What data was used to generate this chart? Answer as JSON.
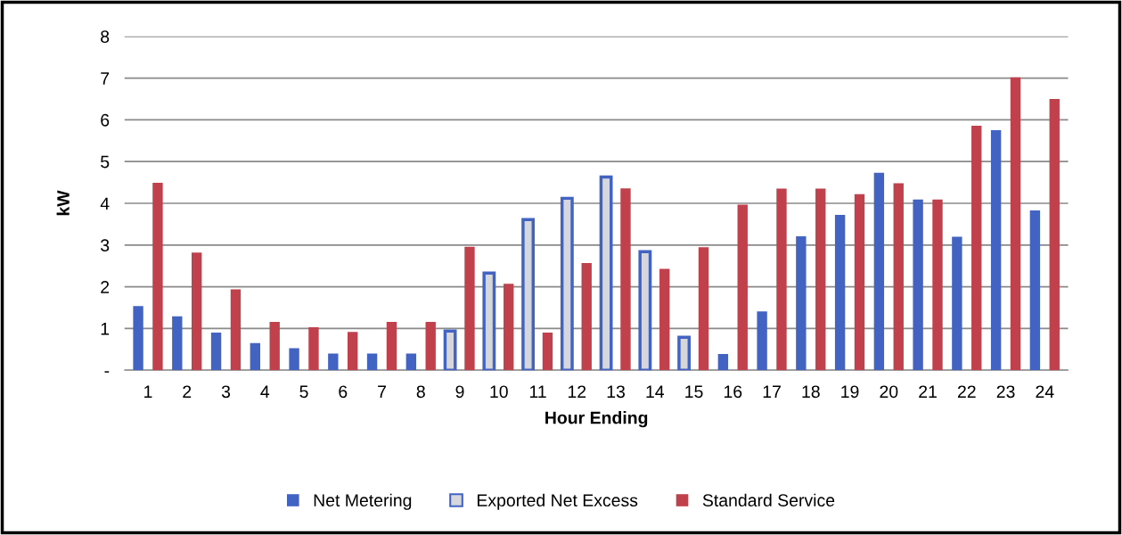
{
  "chart_data": {
    "type": "bar",
    "xlabel": "Hour Ending",
    "ylabel": "kW",
    "categories": [
      "1",
      "2",
      "3",
      "4",
      "5",
      "6",
      "7",
      "8",
      "9",
      "10",
      "11",
      "12",
      "13",
      "14",
      "15",
      "16",
      "17",
      "18",
      "19",
      "20",
      "21",
      "22",
      "23",
      "24"
    ],
    "series": [
      {
        "name": "Net Metering",
        "color": "#4263c2",
        "values": [
          1.54,
          1.29,
          0.9,
          0.65,
          0.53,
          0.4,
          0.4,
          0.4,
          null,
          null,
          null,
          null,
          null,
          null,
          null,
          0.39,
          1.41,
          3.21,
          3.72,
          4.73,
          4.09,
          3.2,
          5.75,
          3.83
        ]
      },
      {
        "name": "Exported Net Excess",
        "color": "#4263c2",
        "values": [
          null,
          null,
          null,
          null,
          null,
          null,
          null,
          null,
          0.94,
          2.33,
          3.61,
          4.12,
          4.63,
          2.84,
          0.79,
          null,
          null,
          null,
          null,
          null,
          null,
          null,
          null,
          null
        ]
      },
      {
        "name": "Standard Service",
        "color": "#c0404b",
        "values": [
          4.49,
          2.82,
          1.94,
          1.16,
          1.03,
          0.92,
          1.16,
          1.16,
          2.96,
          2.07,
          0.9,
          2.57,
          4.36,
          2.43,
          2.95,
          3.97,
          4.35,
          4.35,
          4.22,
          4.48,
          4.09,
          5.86,
          7.02,
          6.5
        ]
      }
    ],
    "ylim": [
      0,
      8
    ],
    "yticks": [
      {
        "value": 0,
        "label": "-"
      },
      1,
      2,
      3,
      4,
      5,
      6,
      7,
      8
    ],
    "grid": "y",
    "legend": "bottom"
  }
}
